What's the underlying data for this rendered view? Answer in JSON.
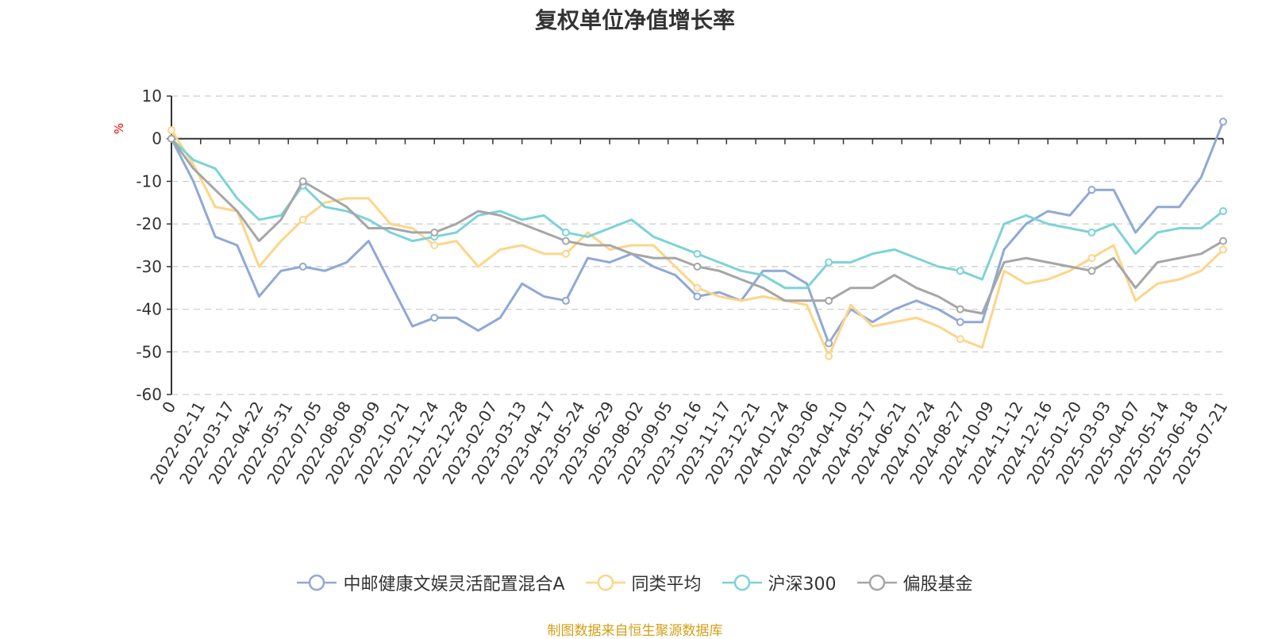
{
  "chart_data": {
    "type": "line",
    "title": "复权单位净值增长率",
    "unit": "%",
    "ylim": [
      -60,
      10
    ],
    "y_ticks": [
      "10",
      "0",
      "-10",
      "-20",
      "-30",
      "-40",
      "-50",
      "-60"
    ],
    "x_tick_labels": [
      "0",
      "2022-02-11",
      "2022-03-17",
      "2022-04-22",
      "2022-05-31",
      "2022-07-05",
      "2022-08-08",
      "2022-09-09",
      "2022-10-21",
      "2022-11-24",
      "2022-12-28",
      "2023-02-07",
      "2023-03-13",
      "2023-04-17",
      "2023-05-24",
      "2023-06-29",
      "2023-08-02",
      "2023-09-05",
      "2023-10-16",
      "2023-11-17",
      "2023-12-21",
      "2024-01-24",
      "2024-03-06",
      "2024-04-10",
      "2024-05-17",
      "2024-06-21",
      "2024-07-24",
      "2024-08-27",
      "2024-10-09",
      "2024-11-12",
      "2024-12-16",
      "2025-01-20",
      "2025-03-03",
      "2025-04-07",
      "2025-05-14",
      "2025-06-18",
      "2025-07-21"
    ],
    "grid": true,
    "legend_position": "bottom",
    "series": [
      {
        "name": "中邮健康文娱灵活配置混合A",
        "color": "#8fa9d6",
        "values": [
          0,
          -10,
          -23,
          -25,
          -37,
          -31,
          -30,
          -31,
          -29,
          -24,
          -34,
          -44,
          -42,
          -42,
          -45,
          -42,
          -34,
          -37,
          -38,
          -28,
          -29,
          -27,
          -30,
          -32,
          -37,
          -36,
          -38,
          -31,
          -31,
          -34,
          -48,
          -40,
          -43,
          -40,
          -38,
          -40,
          -43,
          -43,
          -26,
          -20,
          -17,
          -18,
          -12,
          -12,
          -22,
          -16,
          -16,
          -9,
          4
        ]
      },
      {
        "name": "同类平均",
        "color": "#fdd589",
        "values": [
          2,
          -6,
          -16,
          -17,
          -30,
          -24,
          -19,
          -15,
          -14,
          -14,
          -20,
          -21,
          -25,
          -24,
          -30,
          -26,
          -25,
          -27,
          -27,
          -22,
          -26,
          -25,
          -25,
          -30,
          -35,
          -37,
          -38,
          -37,
          -38,
          -39,
          -51,
          -39,
          -44,
          -43,
          -42,
          -44,
          -47,
          -49,
          -31,
          -34,
          -33,
          -31,
          -28,
          -25,
          -38,
          -34,
          -33,
          -31,
          -26
        ]
      },
      {
        "name": "沪深300",
        "color": "#7dd3d6",
        "values": [
          0,
          -5,
          -7,
          -14,
          -19,
          -18,
          -11,
          -16,
          -17,
          -19,
          -22,
          -24,
          -23,
          -22,
          -18,
          -17,
          -19,
          -18,
          -22,
          -23,
          -21,
          -19,
          -23,
          -25,
          -27,
          -29,
          -31,
          -32,
          -35,
          -35,
          -29,
          -29,
          -27,
          -26,
          -28,
          -30,
          -31,
          -33,
          -20,
          -18,
          -20,
          -21,
          -22,
          -20,
          -27,
          -22,
          -21,
          -21,
          -17
        ]
      },
      {
        "name": "偏股基金",
        "color": "#a6a6a6",
        "values": [
          0,
          -7,
          -12,
          -17,
          -24,
          -19,
          -10,
          -13,
          -16,
          -21,
          -21,
          -22,
          -22,
          -20,
          -17,
          -18,
          -20,
          -22,
          -24,
          -25,
          -25,
          -27,
          -28,
          -28,
          -30,
          -31,
          -33,
          -35,
          -38,
          -38,
          -38,
          -35,
          -35,
          -32,
          -35,
          -37,
          -40,
          -41,
          -29,
          -28,
          -29,
          -30,
          -31,
          -28,
          -35,
          -29,
          -28,
          -27,
          -24
        ]
      }
    ]
  },
  "footer": {
    "source": "制图数据来自恒生聚源数据库"
  }
}
